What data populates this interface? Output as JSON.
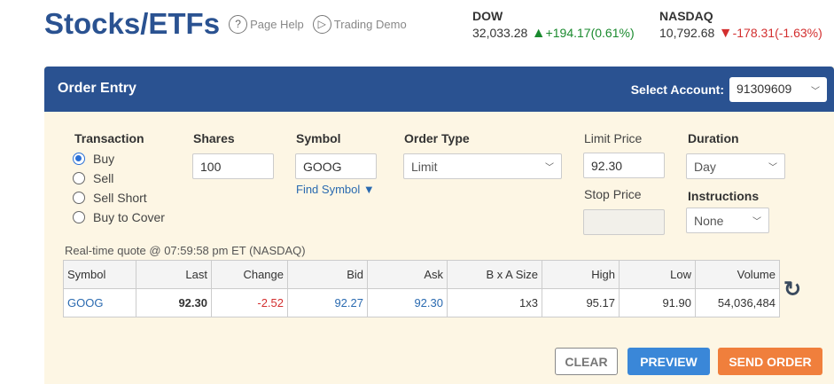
{
  "page": {
    "title": "Stocks/ETFs",
    "page_help": "Page Help",
    "trading_demo": "Trading Demo"
  },
  "indices": [
    {
      "name": "DOW",
      "value": "32,033.28",
      "change": "+194.17(0.61%)",
      "direction": "up"
    },
    {
      "name": "NASDAQ",
      "value": "10,792.68",
      "change": "-178.31(-1.63%)",
      "direction": "down"
    }
  ],
  "panel": {
    "title": "Order Entry",
    "select_account_label": "Select Account:",
    "account": "91309609"
  },
  "form": {
    "transaction_label": "Transaction",
    "transactions": [
      "Buy",
      "Sell",
      "Sell Short",
      "Buy to Cover"
    ],
    "selected": "Buy",
    "shares_label": "Shares",
    "shares": "100",
    "symbol_label": "Symbol",
    "symbol": "GOOG",
    "find_symbol": "Find Symbol",
    "order_type_label": "Order Type",
    "order_type": "Limit",
    "limit_price_label": "Limit Price",
    "limit_price": "92.30",
    "stop_price_label": "Stop Price",
    "stop_price": "",
    "duration_label": "Duration",
    "duration": "Day",
    "instructions_label": "Instructions",
    "instructions": "None"
  },
  "quote": {
    "caption": "Real-time quote @ 07:59:58 pm ET (NASDAQ)",
    "headers": [
      "Symbol",
      "Last",
      "Change",
      "Bid",
      "Ask",
      "B x A Size",
      "High",
      "Low",
      "Volume"
    ],
    "row": [
      "GOOG",
      "92.30",
      "-2.52",
      "92.27",
      "92.30",
      "1x3",
      "95.17",
      "91.90",
      "54,036,484"
    ]
  },
  "buttons": {
    "clear": "CLEAR",
    "preview": "PREVIEW",
    "send": "SEND ORDER"
  },
  "colors": {
    "brand": "#2a5291",
    "preview": "#3a87d8",
    "send": "#f07f3c",
    "up": "#1a8a2e",
    "down": "#d32f2f"
  }
}
